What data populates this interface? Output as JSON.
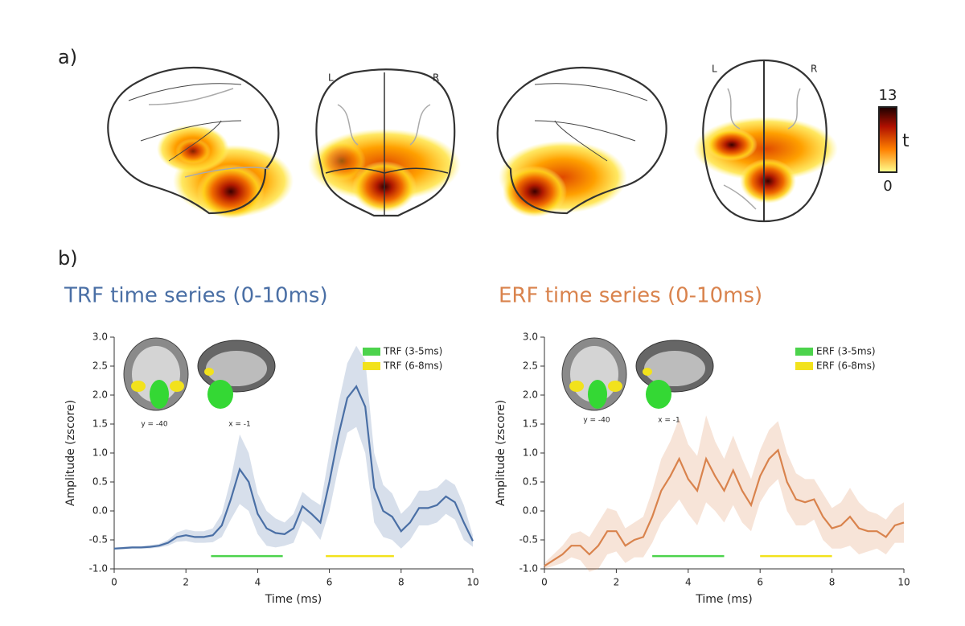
{
  "panel_labels": [
    "a)",
    "b)"
  ],
  "brain_labels": {
    "left": [
      "L",
      "L"
    ],
    "right": [
      "R",
      "R"
    ]
  },
  "colorbar": {
    "label": "t",
    "ticks": [
      0,
      13
    ]
  },
  "chart_data": [
    {
      "type": "line",
      "title": "TRF time series (0-10ms)",
      "title_color": "#4a6fa5",
      "x_label": "Time (ms)",
      "y_label": "Amplitude (zscore)",
      "xlim": [
        0,
        10
      ],
      "ylim": [
        -1.0,
        3.0
      ],
      "xticks": [
        0,
        2,
        4,
        6,
        8,
        10
      ],
      "yticks": [
        {
          "value": -1,
          "label": "-1.0"
        },
        -0.5,
        {
          "value": 0,
          "label": "0.0"
        },
        0.5,
        {
          "value": 1,
          "label": "1.0"
        },
        1.5,
        {
          "value": 2,
          "label": "2.0"
        },
        2.5,
        {
          "value": 3,
          "label": "3.0"
        }
      ],
      "x": [
        0,
        0.25,
        0.5,
        0.75,
        1,
        1.25,
        1.5,
        1.75,
        2,
        2.25,
        2.5,
        2.75,
        3,
        3.25,
        3.5,
        3.75,
        4,
        4.25,
        4.5,
        4.75,
        5,
        5.25,
        5.5,
        5.75,
        6,
        6.25,
        6.5,
        6.75,
        7,
        7.25,
        7.5,
        7.75,
        8,
        8.25,
        8.5,
        8.75,
        9,
        9.25,
        9.5,
        9.75,
        10
      ],
      "series": [
        {
          "color": "#4a6fa5",
          "values": [
            -0.65,
            -0.64,
            -0.63,
            -0.63,
            -0.62,
            -0.6,
            -0.55,
            -0.45,
            -0.42,
            -0.45,
            -0.45,
            -0.42,
            -0.25,
            0.2,
            0.72,
            0.5,
            -0.05,
            -0.3,
            -0.38,
            -0.4,
            -0.3,
            0.08,
            -0.05,
            -0.2,
            0.5,
            1.3,
            1.95,
            2.15,
            1.8,
            0.4,
            0.0,
            -0.1,
            -0.35,
            -0.2,
            0.05,
            0.05,
            0.1,
            0.25,
            0.15,
            -0.2,
            -0.52
          ],
          "errors": [
            0.02,
            0.02,
            0.02,
            0.02,
            0.03,
            0.03,
            0.05,
            0.08,
            0.1,
            0.1,
            0.1,
            0.12,
            0.2,
            0.35,
            0.6,
            0.5,
            0.35,
            0.3,
            0.25,
            0.2,
            0.25,
            0.25,
            0.25,
            0.3,
            0.5,
            0.55,
            0.6,
            0.7,
            0.8,
            0.6,
            0.45,
            0.4,
            0.3,
            0.3,
            0.3,
            0.3,
            0.3,
            0.3,
            0.3,
            0.3,
            0.1
          ]
        }
      ],
      "windows": [
        {
          "name": "TRF (3-5ms)",
          "color": "#4cd34c",
          "x": [
            2.7,
            4.7
          ],
          "y": -0.78
        },
        {
          "name": "TRF (6-8ms)",
          "color": "#f2e21c",
          "x": [
            5.9,
            7.8
          ],
          "y": -0.78
        }
      ],
      "annotations": [
        "y = -40",
        "x = -1"
      ]
    },
    {
      "type": "line",
      "title": "ERF time series (0-10ms)",
      "title_color": "#d9834d",
      "x_label": "Time (ms)",
      "y_label": "Amplitude (zscore)",
      "xlim": [
        0,
        10
      ],
      "ylim": [
        -1.0,
        3.0
      ],
      "xticks": [
        0,
        2,
        4,
        6,
        8,
        10
      ],
      "yticks": [
        {
          "value": -1,
          "label": "-1.0"
        },
        -0.5,
        {
          "value": 0,
          "label": "0.0"
        },
        0.5,
        {
          "value": 1,
          "label": "1.0"
        },
        1.5,
        {
          "value": 2,
          "label": "2.0"
        },
        2.5,
        {
          "value": 3,
          "label": "3.0"
        }
      ],
      "x": [
        0,
        0.25,
        0.5,
        0.75,
        1,
        1.25,
        1.5,
        1.75,
        2,
        2.25,
        2.5,
        2.75,
        3,
        3.25,
        3.5,
        3.75,
        4,
        4.25,
        4.5,
        4.75,
        5,
        5.25,
        5.5,
        5.75,
        6,
        6.25,
        6.5,
        6.75,
        7,
        7.25,
        7.5,
        7.75,
        8,
        8.25,
        8.5,
        8.75,
        9,
        9.25,
        9.5,
        9.75,
        10
      ],
      "series": [
        {
          "color": "#d9834d",
          "values": [
            -0.95,
            -0.85,
            -0.75,
            -0.6,
            -0.6,
            -0.75,
            -0.6,
            -0.35,
            -0.35,
            -0.6,
            -0.5,
            -0.45,
            -0.1,
            0.35,
            0.6,
            0.9,
            0.55,
            0.35,
            0.9,
            0.6,
            0.35,
            0.7,
            0.35,
            0.1,
            0.6,
            0.9,
            1.05,
            0.5,
            0.2,
            0.15,
            0.2,
            -0.1,
            -0.3,
            -0.25,
            -0.1,
            -0.3,
            -0.35,
            -0.35,
            -0.45,
            -0.25,
            -0.2
          ],
          "errors": [
            0.05,
            0.1,
            0.15,
            0.2,
            0.25,
            0.3,
            0.4,
            0.4,
            0.35,
            0.3,
            0.3,
            0.35,
            0.45,
            0.55,
            0.6,
            0.7,
            0.6,
            0.6,
            0.75,
            0.6,
            0.55,
            0.6,
            0.55,
            0.45,
            0.45,
            0.5,
            0.5,
            0.5,
            0.45,
            0.4,
            0.35,
            0.4,
            0.35,
            0.4,
            0.5,
            0.45,
            0.35,
            0.3,
            0.3,
            0.3,
            0.35
          ]
        }
      ],
      "windows": [
        {
          "name": "ERF (3-5ms)",
          "color": "#4cd34c",
          "x": [
            3,
            5
          ],
          "y": -0.78
        },
        {
          "name": "ERF (6-8ms)",
          "color": "#f2e21c",
          "x": [
            6,
            8
          ],
          "y": -0.78
        }
      ],
      "annotations": [
        "y = -40",
        "x = -1"
      ]
    }
  ]
}
